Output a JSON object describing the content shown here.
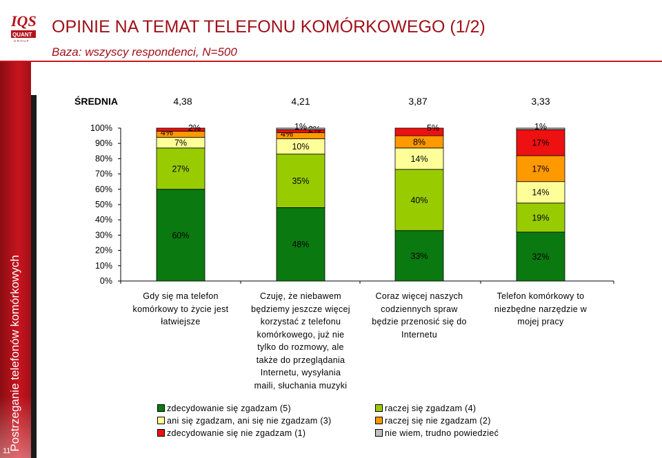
{
  "sidebar": {
    "text": "Postrzeganie telefonów komórkowych",
    "page_number": "11"
  },
  "header": {
    "title": "OPINIE NA TEMAT TELEFONU KOMÓRKOWEGO (1/2)",
    "subtitle": "Baza: wszyscy respondenci, N=500"
  },
  "chart_data": {
    "type": "bar",
    "stacked": true,
    "percent_stacked": true,
    "average_label": "ŚREDNIA",
    "averages": [
      "4,38",
      "4,21",
      "3,87",
      "3,33"
    ],
    "categories": [
      "Gdy się ma telefon komórkowy to życie jest łatwiejsze",
      "Czuję, że niebawem będziemy jeszcze więcej korzystać z telefonu komórkowego, już nie tylko do rozmowy, ale także do przeglądania Internetu, wysyłania maili, słuchania muzyki",
      "Coraz więcej naszych codziennych spraw będzie przenosić się do Internetu",
      "Telefon komórkowy to niezbędne narzędzie w mojej pracy"
    ],
    "category_lines": [
      [
        "Gdy się ma telefon",
        "komórkowy to życie jest",
        "łatwiejsze"
      ],
      [
        "Czuję, że niebawem",
        "będziemy jeszcze więcej",
        "korzystać z telefonu",
        "komórkowego, już nie",
        "tylko do rozmowy, ale",
        "także do przeglądania",
        "Internetu, wysyłania",
        "maili, słuchania muzyki"
      ],
      [
        "Coraz więcej naszych",
        "codziennych spraw",
        "będzie przenosić się do",
        "Internetu"
      ],
      [
        "Telefon komórkowy to",
        "niezbędne narzędzie w",
        "mojej pracy"
      ]
    ],
    "series": [
      {
        "name": "zdecydowanie się zgadzam (5)",
        "color": "#0a7a10",
        "values": [
          60,
          48,
          33,
          32
        ]
      },
      {
        "name": "raczej się zgadzam (4)",
        "color": "#99cc00",
        "values": [
          27,
          35,
          40,
          19
        ]
      },
      {
        "name": "ani się zgadzam, ani się nie zgadzam (3)",
        "color": "#ffff99",
        "values": [
          7,
          10,
          14,
          14
        ]
      },
      {
        "name": "raczej się nie zgadzam (2)",
        "color": "#ff9900",
        "values": [
          4,
          4,
          8,
          17
        ]
      },
      {
        "name": "zdecydowanie się nie zgadzam (1)",
        "color": "#ee1111",
        "values": [
          2,
          2,
          5,
          17
        ]
      },
      {
        "name": "nie wiem, trudno powiedzieć",
        "color": "#c0c0c0",
        "values": [
          0,
          1,
          0,
          1
        ]
      }
    ],
    "value_labels": [
      [
        "60%",
        "27%",
        "7%",
        "4%",
        "2%",
        ""
      ],
      [
        "48%",
        "35%",
        "10%",
        "4%",
        "2%",
        "1%"
      ],
      [
        "33%",
        "40%",
        "14%",
        "8%",
        "5%",
        ""
      ],
      [
        "32%",
        "19%",
        "14%",
        "17%",
        "17%",
        "1%"
      ]
    ],
    "y_ticks": [
      "0%",
      "10%",
      "20%",
      "30%",
      "40%",
      "50%",
      "60%",
      "70%",
      "80%",
      "90%",
      "100%"
    ],
    "ylim": [
      0,
      100
    ],
    "legend_position": "bottom"
  }
}
